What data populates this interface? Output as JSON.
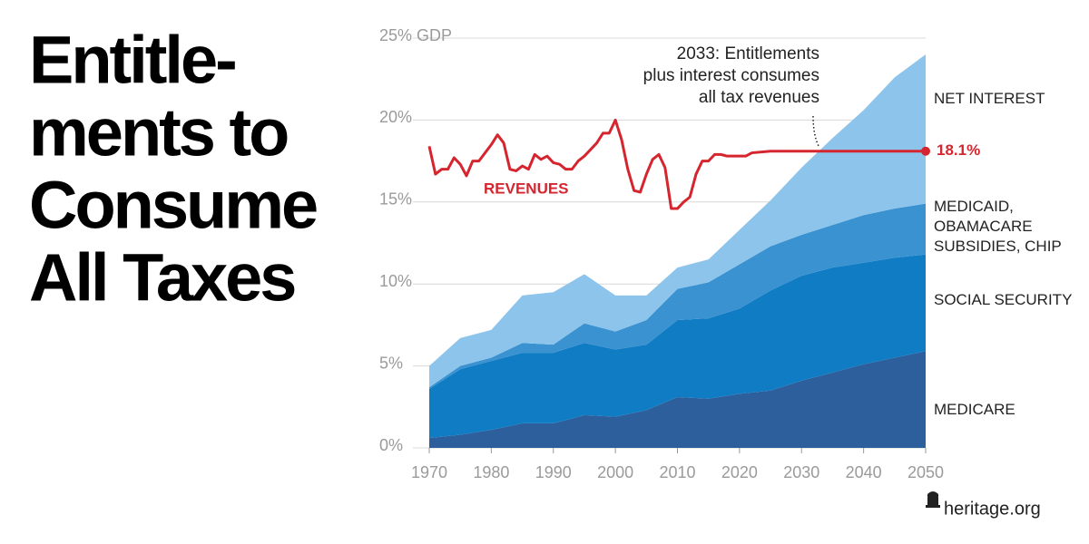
{
  "chart_data": {
    "type": "stacked-area",
    "title_lines": [
      "Entitle-",
      "ments to",
      "Consume",
      "All Taxes"
    ],
    "x": [
      1970,
      1975,
      1980,
      1985,
      1990,
      1995,
      2000,
      2005,
      2010,
      2015,
      2020,
      2025,
      2030,
      2035,
      2040,
      2045,
      2050
    ],
    "series": [
      {
        "name": "MEDICARE",
        "color": "#2d5f9d",
        "values": [
          0.6,
          0.8,
          1.1,
          1.5,
          1.5,
          2.0,
          1.9,
          2.3,
          3.1,
          3.0,
          3.3,
          3.5,
          4.1,
          4.6,
          5.1,
          5.5,
          5.9
        ]
      },
      {
        "name": "SOCIAL SECURITY",
        "color": "#0f7cc4",
        "values": [
          3.0,
          4.0,
          4.2,
          4.3,
          4.3,
          4.4,
          4.1,
          4.0,
          4.7,
          4.9,
          5.2,
          6.1,
          6.4,
          6.4,
          6.2,
          6.1,
          5.9
        ]
      },
      {
        "name": "MEDICAID, OBAMACARE SUBSIDIES, CHIP",
        "color": "#3a92d0",
        "values": [
          0.1,
          0.2,
          0.2,
          0.6,
          0.5,
          1.2,
          1.1,
          1.5,
          1.9,
          2.2,
          2.7,
          2.7,
          2.5,
          2.6,
          2.9,
          3.0,
          3.1
        ]
      },
      {
        "name": "NET INTEREST",
        "color": "#8cc4eb",
        "values": [
          1.3,
          1.7,
          1.7,
          2.9,
          3.2,
          3.0,
          2.2,
          1.5,
          1.3,
          1.4,
          2.1,
          2.8,
          4.1,
          5.3,
          6.4,
          8.0,
          9.1
        ]
      }
    ],
    "line_series": {
      "type": "line",
      "name": "REVENUES",
      "color": "#d5252e",
      "x": [
        1970,
        1971,
        1972,
        1973,
        1974,
        1975,
        1976,
        1977,
        1978,
        1979,
        1980,
        1981,
        1982,
        1983,
        1984,
        1985,
        1986,
        1987,
        1988,
        1989,
        1990,
        1991,
        1992,
        1993,
        1994,
        1995,
        1996,
        1997,
        1998,
        1999,
        2000,
        2001,
        2002,
        2003,
        2004,
        2005,
        2006,
        2007,
        2008,
        2009,
        2010,
        2011,
        2012,
        2013,
        2014,
        2015,
        2016,
        2017,
        2018,
        2019,
        2020,
        2021,
        2022,
        2025,
        2050
      ],
      "values": [
        18.4,
        16.7,
        17.0,
        17.0,
        17.7,
        17.3,
        16.6,
        17.5,
        17.5,
        18.0,
        18.5,
        19.1,
        18.6,
        17.0,
        16.9,
        17.2,
        17.0,
        17.9,
        17.6,
        17.8,
        17.4,
        17.3,
        17.0,
        17.0,
        17.5,
        17.8,
        18.2,
        18.6,
        19.2,
        19.2,
        20.0,
        18.8,
        17.0,
        15.7,
        15.6,
        16.7,
        17.6,
        17.9,
        17.1,
        14.6,
        14.6,
        15.0,
        15.3,
        16.7,
        17.5,
        17.5,
        17.9,
        17.9,
        17.8,
        17.8,
        17.8,
        17.8,
        18.0,
        18.1,
        18.1
      ],
      "end_label": "18.1%"
    },
    "annotation_lines": [
      "2033: Entitlements",
      "plus interest consumes",
      "all tax revenues"
    ],
    "xlim": [
      1970,
      2050
    ],
    "xticks": [
      1970,
      1980,
      1990,
      2000,
      2010,
      2020,
      2030,
      2040,
      2050
    ],
    "ylim": [
      0,
      25
    ],
    "yticks": [
      {
        "value": 0,
        "label": "0%"
      },
      {
        "value": 5,
        "label": "5%"
      },
      {
        "value": 10,
        "label": "10%"
      },
      {
        "value": 15,
        "label": "15%"
      },
      {
        "value": 20,
        "label": "20%"
      },
      {
        "value": 25,
        "label": "25% GDP"
      }
    ],
    "grid": true,
    "source": "heritage.org"
  }
}
